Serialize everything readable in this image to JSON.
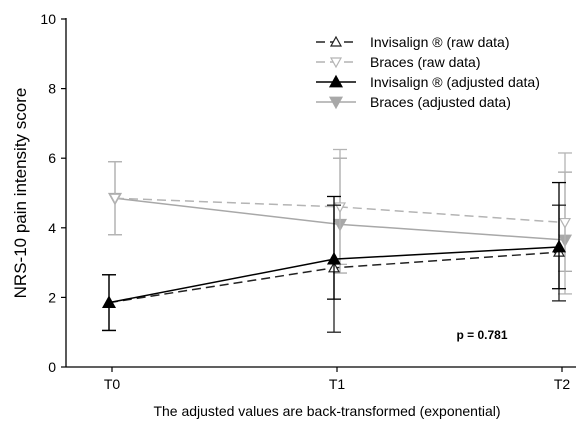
{
  "chart_data": {
    "type": "line",
    "ylabel": "NRS-10 pain intensity score",
    "footnote": "The adjusted values are back-transformed (exponential)",
    "annotation": "p = 0.781",
    "categories": [
      "T0",
      "T1",
      "T2"
    ],
    "ylim": [
      0,
      10
    ],
    "yticks": [
      "0",
      "2",
      "4",
      "6",
      "8",
      "10"
    ],
    "grid": false,
    "legend_position": "top-right",
    "series": [
      {
        "name": "Invisalign ® (raw data)",
        "color": "#222222",
        "dashed": true,
        "marker": "triangle-up-open",
        "values": [
          1.85,
          2.85,
          3.3
        ],
        "err_low": [
          1.05,
          1.0,
          1.9
        ],
        "err_high": [
          2.65,
          4.65,
          4.65
        ]
      },
      {
        "name": "Braces (raw data)",
        "color": "#b4b4b4",
        "dashed": true,
        "marker": "triangle-down-open",
        "values": [
          4.85,
          4.6,
          4.15
        ],
        "err_low": [
          3.8,
          2.95,
          2.1
        ],
        "err_high": [
          5.9,
          6.25,
          6.15
        ]
      },
      {
        "name": "Invisalign ® (adjusted data)",
        "color": "#000000",
        "dashed": false,
        "marker": "triangle-up-filled",
        "values": [
          1.85,
          3.1,
          3.45
        ],
        "err_low": [
          1.05,
          1.95,
          2.25
        ],
        "err_high": [
          2.65,
          4.9,
          5.3
        ]
      },
      {
        "name": "Braces (adjusted data)",
        "color": "#a8a8a8",
        "dashed": false,
        "marker": "triangle-down-filled",
        "values": [
          4.85,
          4.1,
          3.65
        ],
        "err_low": [
          3.8,
          2.7,
          2.75
        ],
        "err_high": [
          5.9,
          6.0,
          5.6
        ]
      }
    ]
  }
}
